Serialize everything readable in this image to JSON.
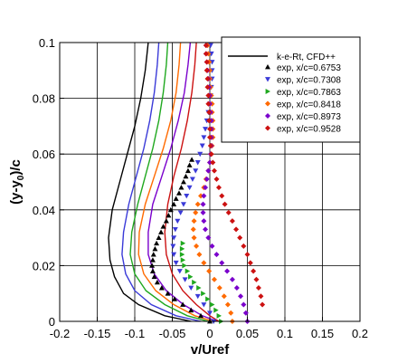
{
  "chart_data": {
    "type": "line",
    "xlabel": "v/Uref",
    "ylabel_main": "(y-y",
    "ylabel_sub": "0",
    "ylabel_tail": ")/c",
    "xlim": [
      -0.2,
      0.2
    ],
    "ylim": [
      0,
      0.1
    ],
    "xticks": [
      -0.2,
      -0.15,
      -0.1,
      -0.05,
      0,
      0.05,
      0.1,
      0.15,
      0.2
    ],
    "xtick_labels": [
      "-0.2",
      "-0.15",
      "-0.1",
      "-0.05",
      "0",
      "0.05",
      "0.1",
      "0.15",
      "0.2"
    ],
    "yticks": [
      0,
      0.02,
      0.04,
      0.06,
      0.08,
      0.1
    ],
    "ytick_labels": [
      "0",
      "0.02",
      "0.04",
      "0.06",
      "0.08",
      "0.1"
    ],
    "grid": true,
    "legend_position": "top-right",
    "legend": {
      "cfd_label": "k-e-Rt, CFD++",
      "cfd_color": "#000000"
    },
    "series": [
      {
        "name": "exp, x/c=0.6753",
        "color": "#000000",
        "marker": "triangle-up",
        "cfd": [
          [
            -0.025,
            0
          ],
          [
            -0.06,
            0.002
          ],
          [
            -0.095,
            0.006
          ],
          [
            -0.115,
            0.01
          ],
          [
            -0.127,
            0.016
          ],
          [
            -0.133,
            0.022
          ],
          [
            -0.135,
            0.03
          ],
          [
            -0.13,
            0.04
          ],
          [
            -0.12,
            0.05
          ],
          [
            -0.11,
            0.06
          ],
          [
            -0.1,
            0.07
          ],
          [
            -0.092,
            0.08
          ],
          [
            -0.086,
            0.09
          ],
          [
            -0.082,
            0.1
          ]
        ],
        "exp": [
          [
            0,
            0
          ],
          [
            -0.012,
            0.002
          ],
          [
            -0.025,
            0.004
          ],
          [
            -0.036,
            0.006
          ],
          [
            -0.047,
            0.008
          ],
          [
            -0.056,
            0.01
          ],
          [
            -0.064,
            0.012
          ],
          [
            -0.07,
            0.014
          ],
          [
            -0.074,
            0.016
          ],
          [
            -0.076,
            0.018
          ],
          [
            -0.077,
            0.02
          ],
          [
            -0.076,
            0.022
          ],
          [
            -0.075,
            0.024
          ],
          [
            -0.073,
            0.026
          ],
          [
            -0.071,
            0.028
          ],
          [
            -0.068,
            0.03
          ],
          [
            -0.065,
            0.032
          ],
          [
            -0.062,
            0.034
          ],
          [
            -0.058,
            0.036
          ],
          [
            -0.055,
            0.038
          ],
          [
            -0.052,
            0.04
          ],
          [
            -0.048,
            0.042
          ],
          [
            -0.045,
            0.044
          ],
          [
            -0.041,
            0.046
          ],
          [
            -0.038,
            0.048
          ],
          [
            -0.035,
            0.05
          ],
          [
            -0.032,
            0.052
          ],
          [
            -0.029,
            0.054
          ],
          [
            -0.027,
            0.056
          ],
          [
            -0.024,
            0.058
          ]
        ]
      },
      {
        "name": "exp, x/c=0.7308",
        "color": "#3a3ad8",
        "marker": "triangle-down",
        "cfd": [
          [
            -0.012,
            0
          ],
          [
            -0.045,
            0.002
          ],
          [
            -0.078,
            0.006
          ],
          [
            -0.1,
            0.011
          ],
          [
            -0.112,
            0.017
          ],
          [
            -0.117,
            0.024
          ],
          [
            -0.115,
            0.032
          ],
          [
            -0.108,
            0.042
          ],
          [
            -0.098,
            0.052
          ],
          [
            -0.088,
            0.062
          ],
          [
            -0.08,
            0.072
          ],
          [
            -0.074,
            0.082
          ],
          [
            -0.07,
            0.092
          ],
          [
            -0.068,
            0.1
          ]
        ],
        "exp": [
          [
            0.005,
            0
          ],
          [
            0,
            0.003
          ],
          [
            -0.008,
            0.006
          ],
          [
            -0.016,
            0.009
          ],
          [
            -0.025,
            0.012
          ],
          [
            -0.033,
            0.015
          ],
          [
            -0.04,
            0.018
          ],
          [
            -0.045,
            0.021
          ],
          [
            -0.048,
            0.024
          ],
          [
            -0.049,
            0.027
          ],
          [
            -0.048,
            0.03
          ],
          [
            -0.046,
            0.033
          ],
          [
            -0.043,
            0.036
          ],
          [
            -0.039,
            0.039
          ],
          [
            -0.035,
            0.042
          ],
          [
            -0.031,
            0.045
          ],
          [
            -0.027,
            0.048
          ],
          [
            -0.023,
            0.051
          ],
          [
            -0.019,
            0.054
          ],
          [
            -0.016,
            0.057
          ],
          [
            -0.013,
            0.06
          ],
          [
            -0.01,
            0.063
          ],
          [
            -0.008,
            0.066
          ],
          [
            -0.006,
            0.069
          ],
          [
            -0.004,
            0.072
          ],
          [
            -0.002,
            0.075
          ],
          [
            0,
            0.078
          ],
          [
            0.001,
            0.081
          ],
          [
            0.002,
            0.084
          ],
          [
            0.003,
            0.087
          ],
          [
            0.003,
            0.09
          ],
          [
            0.003,
            0.093
          ],
          [
            0.002,
            0.096
          ],
          [
            0.001,
            0.099
          ]
        ]
      },
      {
        "name": "exp, x/c=0.7863",
        "color": "#1fa81f",
        "marker": "triangle-right",
        "cfd": [
          [
            -0.002,
            0
          ],
          [
            -0.03,
            0.002
          ],
          [
            -0.06,
            0.006
          ],
          [
            -0.085,
            0.011
          ],
          [
            -0.1,
            0.017
          ],
          [
            -0.106,
            0.024
          ],
          [
            -0.104,
            0.032
          ],
          [
            -0.096,
            0.042
          ],
          [
            -0.086,
            0.052
          ],
          [
            -0.076,
            0.062
          ],
          [
            -0.068,
            0.072
          ],
          [
            -0.062,
            0.082
          ],
          [
            -0.058,
            0.092
          ],
          [
            -0.056,
            0.1
          ]
        ],
        "exp": [
          [
            0.015,
            0
          ],
          [
            0.012,
            0.002
          ],
          [
            0.008,
            0.004
          ],
          [
            0.003,
            0.006
          ],
          [
            -0.003,
            0.008
          ],
          [
            -0.009,
            0.01
          ],
          [
            -0.015,
            0.012
          ],
          [
            -0.021,
            0.014
          ],
          [
            -0.026,
            0.016
          ],
          [
            -0.03,
            0.018
          ],
          [
            -0.034,
            0.02
          ],
          [
            -0.036,
            0.022
          ],
          [
            -0.037,
            0.024
          ],
          [
            -0.037,
            0.026
          ],
          [
            -0.036,
            0.028
          ]
        ]
      },
      {
        "name": "exp, x/c=0.8418",
        "color": "#ff6a00",
        "marker": "diamond",
        "cfd": [
          [
            0.005,
            0
          ],
          [
            -0.02,
            0.002
          ],
          [
            -0.048,
            0.006
          ],
          [
            -0.072,
            0.011
          ],
          [
            -0.088,
            0.017
          ],
          [
            -0.095,
            0.024
          ],
          [
            -0.094,
            0.032
          ],
          [
            -0.086,
            0.042
          ],
          [
            -0.074,
            0.052
          ],
          [
            -0.062,
            0.062
          ],
          [
            -0.052,
            0.072
          ],
          [
            -0.045,
            0.082
          ],
          [
            -0.041,
            0.092
          ],
          [
            -0.039,
            0.1
          ]
        ],
        "exp": [
          [
            0.03,
            0
          ],
          [
            0.028,
            0.003
          ],
          [
            0.024,
            0.006
          ],
          [
            0.019,
            0.009
          ],
          [
            0.013,
            0.012
          ],
          [
            0.006,
            0.015
          ],
          [
            -0.001,
            0.018
          ],
          [
            -0.008,
            0.021
          ],
          [
            -0.014,
            0.024
          ],
          [
            -0.018,
            0.027
          ],
          [
            -0.021,
            0.03
          ],
          [
            -0.022,
            0.033
          ],
          [
            -0.021,
            0.036
          ],
          [
            -0.019,
            0.039
          ],
          [
            -0.016,
            0.042
          ],
          [
            -0.012,
            0.045
          ],
          [
            -0.008,
            0.048
          ],
          [
            -0.005,
            0.051
          ],
          [
            -0.002,
            0.054
          ],
          [
            0,
            0.057
          ],
          [
            0.002,
            0.06
          ],
          [
            0.003,
            0.063
          ],
          [
            0.004,
            0.066
          ],
          [
            0.004,
            0.069
          ],
          [
            0.004,
            0.072
          ],
          [
            0.003,
            0.075
          ],
          [
            0.003,
            0.078
          ],
          [
            0.002,
            0.081
          ],
          [
            0.001,
            0.084
          ],
          [
            0,
            0.087
          ],
          [
            0,
            0.09
          ],
          [
            -0.001,
            0.093
          ],
          [
            -0.002,
            0.096
          ],
          [
            -0.003,
            0.099
          ]
        ]
      },
      {
        "name": "exp, x/c=0.8973",
        "color": "#7a00cc",
        "marker": "diamond",
        "cfd": [
          [
            0.01,
            0
          ],
          [
            -0.01,
            0.002
          ],
          [
            -0.035,
            0.006
          ],
          [
            -0.058,
            0.011
          ],
          [
            -0.074,
            0.017
          ],
          [
            -0.082,
            0.024
          ],
          [
            -0.082,
            0.032
          ],
          [
            -0.076,
            0.042
          ],
          [
            -0.064,
            0.052
          ],
          [
            -0.052,
            0.062
          ],
          [
            -0.042,
            0.072
          ],
          [
            -0.034,
            0.082
          ],
          [
            -0.029,
            0.092
          ],
          [
            -0.026,
            0.1
          ]
        ],
        "exp": [
          [
            0.05,
            0
          ],
          [
            0.048,
            0.003
          ],
          [
            0.045,
            0.006
          ],
          [
            0.041,
            0.009
          ],
          [
            0.036,
            0.012
          ],
          [
            0.03,
            0.015
          ],
          [
            0.023,
            0.018
          ],
          [
            0.016,
            0.021
          ],
          [
            0.009,
            0.024
          ],
          [
            0.003,
            0.027
          ],
          [
            -0.002,
            0.03
          ],
          [
            -0.006,
            0.033
          ],
          [
            -0.008,
            0.036
          ],
          [
            -0.009,
            0.039
          ],
          [
            -0.009,
            0.042
          ],
          [
            -0.008,
            0.045
          ],
          [
            -0.006,
            0.048
          ],
          [
            -0.004,
            0.051
          ],
          [
            -0.002,
            0.054
          ],
          [
            0,
            0.057
          ],
          [
            0.001,
            0.06
          ],
          [
            0.002,
            0.063
          ],
          [
            0.002,
            0.066
          ],
          [
            0.002,
            0.069
          ],
          [
            0.002,
            0.072
          ],
          [
            0.001,
            0.075
          ],
          [
            0,
            0.078
          ],
          [
            0,
            0.081
          ],
          [
            -0.001,
            0.084
          ],
          [
            -0.002,
            0.087
          ],
          [
            -0.003,
            0.09
          ],
          [
            -0.004,
            0.093
          ],
          [
            -0.005,
            0.096
          ],
          [
            -0.005,
            0.099
          ]
        ]
      },
      {
        "name": "exp, x/c=0.9528",
        "color": "#cc1111",
        "marker": "diamond",
        "cfd": [
          [
            0.012,
            0
          ],
          [
            0,
            0.002
          ],
          [
            -0.018,
            0.006
          ],
          [
            -0.036,
            0.011
          ],
          [
            -0.05,
            0.017
          ],
          [
            -0.058,
            0.024
          ],
          [
            -0.06,
            0.032
          ],
          [
            -0.056,
            0.042
          ],
          [
            -0.048,
            0.052
          ],
          [
            -0.038,
            0.062
          ],
          [
            -0.03,
            0.072
          ],
          [
            -0.024,
            0.082
          ],
          [
            -0.02,
            0.092
          ],
          [
            -0.018,
            0.1
          ]
        ],
        "exp": [
          [
            0.07,
            0.006
          ],
          [
            0.068,
            0.009
          ],
          [
            0.065,
            0.012
          ],
          [
            0.062,
            0.015
          ],
          [
            0.058,
            0.018
          ],
          [
            0.054,
            0.021
          ],
          [
            0.05,
            0.024
          ],
          [
            0.045,
            0.027
          ],
          [
            0.04,
            0.03
          ],
          [
            0.035,
            0.033
          ],
          [
            0.03,
            0.036
          ],
          [
            0.025,
            0.039
          ],
          [
            0.02,
            0.042
          ],
          [
            0.016,
            0.045
          ],
          [
            0.012,
            0.048
          ],
          [
            0.009,
            0.051
          ],
          [
            0.006,
            0.054
          ],
          [
            0.004,
            0.057
          ],
          [
            0.002,
            0.06
          ],
          [
            0.001,
            0.063
          ],
          [
            0,
            0.066
          ],
          [
            0,
            0.069
          ],
          [
            -0.001,
            0.072
          ],
          [
            -0.001,
            0.075
          ],
          [
            -0.002,
            0.078
          ],
          [
            -0.002,
            0.081
          ],
          [
            -0.003,
            0.084
          ],
          [
            -0.003,
            0.087
          ],
          [
            -0.004,
            0.09
          ],
          [
            -0.004,
            0.093
          ],
          [
            -0.005,
            0.096
          ],
          [
            -0.005,
            0.099
          ]
        ]
      }
    ]
  }
}
